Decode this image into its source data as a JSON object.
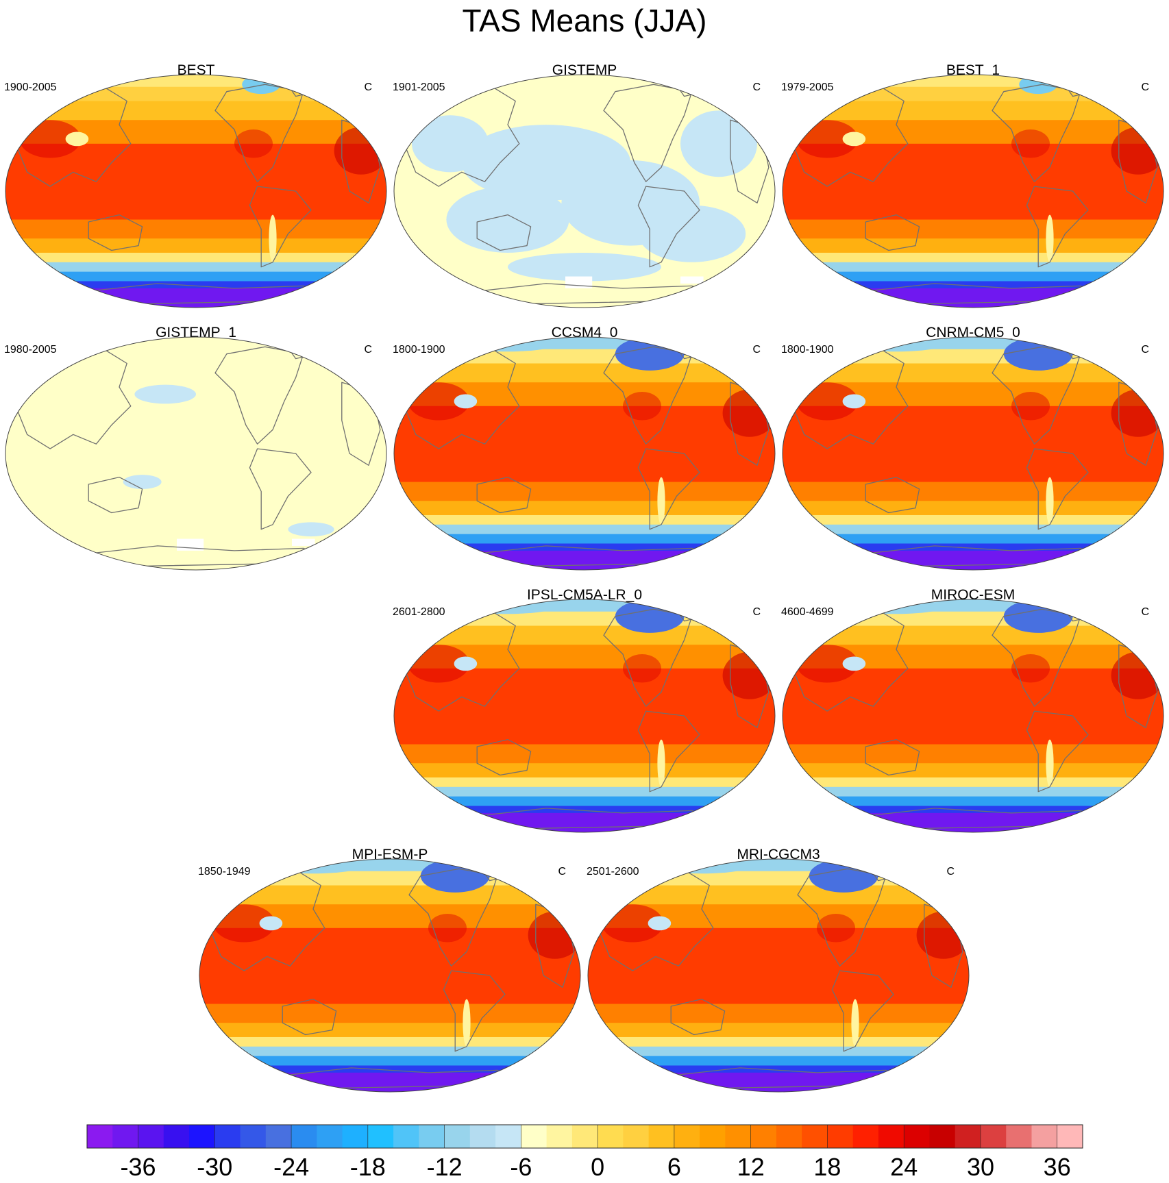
{
  "title": "TAS Means (JJA)",
  "panels": [
    {
      "title": "BEST",
      "period": "1900-2005",
      "units": "C",
      "style": "warm"
    },
    {
      "title": "GISTEMP",
      "period": "1901-2005",
      "units": "C",
      "style": "anomaly"
    },
    {
      "title": "BEST_1",
      "period": "1979-2005",
      "units": "C",
      "style": "warm"
    },
    {
      "title": "GISTEMP_1",
      "period": "1980-2005",
      "units": "C",
      "style": "anomaly-pale"
    },
    {
      "title": "CCSM4_0",
      "period": "1800-1900",
      "units": "C",
      "style": "model"
    },
    {
      "title": "CNRM-CM5_0",
      "period": "1800-1900",
      "units": "C",
      "style": "model"
    },
    {
      "title": "IPSL-CM5A-LR_0",
      "period": "2601-2800",
      "units": "C",
      "style": "model"
    },
    {
      "title": "MIROC-ESM",
      "period": "4600-4699",
      "units": "C",
      "style": "model"
    },
    {
      "title": "MPI-ESM-P",
      "period": "1850-1949",
      "units": "C",
      "style": "model"
    },
    {
      "title": "MRI-CGCM3",
      "period": "2501-2600",
      "units": "C",
      "style": "model"
    }
  ],
  "colorbar": {
    "labels": [
      "-36",
      "-30",
      "-24",
      "-18",
      "-12",
      "-6",
      "0",
      "6",
      "12",
      "18",
      "24",
      "30",
      "36"
    ],
    "colors": [
      "#8b1af0",
      "#7018f0",
      "#5a14f0",
      "#3810f0",
      "#1c14ff",
      "#2a3cf0",
      "#3458e8",
      "#4870e0",
      "#2a8cf0",
      "#2ea0f4",
      "#1eb0ff",
      "#20c0ff",
      "#50c4f8",
      "#78ccf0",
      "#98d4ec",
      "#b4dcf0",
      "#c6e6f6",
      "#ffffc8",
      "#fff5a0",
      "#ffe878",
      "#ffdc50",
      "#ffd040",
      "#ffc020",
      "#ffb010",
      "#ffa000",
      "#ff9000",
      "#ff8000",
      "#ff6a00",
      "#ff5000",
      "#ff3c00",
      "#ff2000",
      "#f00a00",
      "#dc0000",
      "#c80000",
      "#d02020",
      "#dc4040",
      "#e87070",
      "#f4a0a0",
      "#ffb8b8"
    ]
  }
}
